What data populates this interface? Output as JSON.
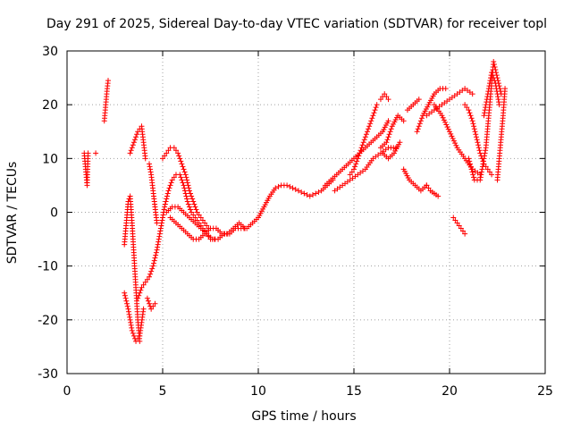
{
  "chart_data": {
    "type": "scatter",
    "title": "Day 291 of 2025, Sidereal Day-to-day VTEC variation (SDTVAR) for receiver topl",
    "xlabel": "GPS time / hours",
    "ylabel": "SDTVAR / TECUs",
    "xlim": [
      0,
      25
    ],
    "ylim": [
      -30,
      30
    ],
    "xticks": [
      "0",
      "5",
      "10",
      "15",
      "20",
      "25"
    ],
    "yticks": [
      "-30",
      "-20",
      "-10",
      "0",
      "10",
      "20",
      "30"
    ],
    "grid": true,
    "marker": "+",
    "color": "#ff0000",
    "series": [
      {
        "name": "s1",
        "x": [
          0.9,
          0.95,
          1.0,
          1.05,
          1.1
        ],
        "y": [
          11,
          9,
          7,
          5,
          11
        ]
      },
      {
        "name": "s2",
        "x": [
          1.5
        ],
        "y": [
          11
        ]
      },
      {
        "name": "s3",
        "x": [
          1.95,
          2.0,
          2.05,
          2.1,
          2.15
        ],
        "y": [
          17,
          19,
          21,
          23,
          24.5
        ]
      },
      {
        "name": "s4",
        "x": [
          3.0,
          3.1,
          3.2,
          3.3,
          3.4,
          3.5,
          3.6,
          3.7,
          3.8
        ],
        "y": [
          -6,
          -2,
          2,
          3,
          -2,
          -8,
          -14,
          -20,
          -24
        ]
      },
      {
        "name": "s5",
        "x": [
          3.0,
          3.2,
          3.4,
          3.6,
          3.8,
          4.0
        ],
        "y": [
          -15,
          -18,
          -22,
          -24,
          -23,
          -18
        ]
      },
      {
        "name": "s6",
        "x": [
          3.3,
          3.5,
          3.7,
          3.9,
          4.1
        ],
        "y": [
          11,
          13,
          15,
          16,
          10
        ]
      },
      {
        "name": "s7",
        "x": [
          3.7,
          3.9,
          4.1,
          4.3,
          4.5,
          4.7,
          4.9,
          5.1,
          5.3,
          5.5,
          5.7,
          5.9,
          6.1,
          6.3,
          6.5,
          6.7,
          6.9,
          7.1,
          7.3,
          7.5,
          7.7
        ],
        "y": [
          -16,
          -14,
          -13,
          -12,
          -10,
          -7,
          -3,
          1,
          4,
          6,
          7,
          7,
          5,
          2,
          0,
          -1,
          -2,
          -3,
          -4,
          -5,
          -5
        ]
      },
      {
        "name": "s8",
        "x": [
          4.2,
          4.4,
          4.6
        ],
        "y": [
          -16,
          -18,
          -17
        ]
      },
      {
        "name": "s9",
        "x": [
          4.3,
          4.4,
          4.5,
          4.6,
          4.7
        ],
        "y": [
          9,
          7,
          4,
          1,
          -2
        ]
      },
      {
        "name": "s10",
        "x": [
          5.0,
          5.2,
          5.4,
          5.6,
          5.8,
          6.0,
          6.2,
          6.4,
          6.6,
          6.8,
          7.0,
          7.2,
          7.4
        ],
        "y": [
          10,
          11,
          12,
          12,
          11,
          9,
          7,
          4,
          2,
          0,
          -1,
          -2,
          -3
        ]
      },
      {
        "name": "s11",
        "x": [
          5.2,
          5.5,
          5.8,
          6.1,
          6.4,
          6.7,
          7.0,
          7.3,
          7.6,
          7.9,
          8.2,
          8.5,
          8.8,
          9.1,
          9.4,
          9.7,
          10.0,
          10.3,
          10.6,
          10.9,
          11.2,
          11.5,
          11.8,
          12.1,
          12.4,
          12.7,
          13.0,
          13.3,
          13.6,
          13.9
        ],
        "y": [
          0,
          1,
          1,
          0,
          -1,
          -2,
          -3,
          -4,
          -5,
          -5,
          -4,
          -4,
          -3,
          -3,
          -3,
          -2,
          -1,
          1,
          3,
          4.5,
          5,
          5,
          4.5,
          4,
          3.5,
          3,
          3.5,
          4,
          5,
          6
        ]
      },
      {
        "name": "s12",
        "x": [
          5.4,
          5.7,
          6.0,
          6.3,
          6.6,
          6.9,
          7.2,
          7.5,
          7.8,
          8.1,
          8.4,
          8.7,
          9.0,
          9.3
        ],
        "y": [
          -1,
          -2,
          -3,
          -4,
          -5,
          -5,
          -4,
          -3,
          -3,
          -4,
          -4,
          -3,
          -2,
          -3
        ]
      },
      {
        "name": "s13",
        "x": [
          13.5,
          13.8,
          14.1,
          14.4,
          14.7,
          15.0,
          15.3,
          15.6,
          15.9,
          16.2,
          16.5,
          16.8
        ],
        "y": [
          5,
          6,
          7,
          8,
          9,
          10,
          11,
          12,
          13,
          14,
          15,
          17
        ]
      },
      {
        "name": "s14",
        "x": [
          14.0,
          14.4,
          14.8,
          15.2,
          15.6,
          16.0,
          16.4,
          16.8,
          17.2
        ],
        "y": [
          4,
          5,
          6,
          7,
          8,
          10,
          11,
          12,
          12
        ]
      },
      {
        "name": "s15",
        "x": [
          14.8,
          15.0,
          15.2,
          15.4,
          15.6,
          15.8,
          16.0,
          16.2
        ],
        "y": [
          7,
          8,
          10,
          12,
          14,
          16,
          18,
          20
        ]
      },
      {
        "name": "s16",
        "x": [
          16.4,
          16.6,
          16.8
        ],
        "y": [
          21,
          22,
          21
        ]
      },
      {
        "name": "s17",
        "x": [
          16.4,
          16.7,
          17.0,
          17.3,
          17.6
        ],
        "y": [
          12,
          13,
          16,
          18,
          17
        ]
      },
      {
        "name": "s18",
        "x": [
          16.5,
          16.8,
          17.1,
          17.4
        ],
        "y": [
          11,
          10,
          11,
          13
        ]
      },
      {
        "name": "s19",
        "x": [
          17.8,
          18.1,
          18.4
        ],
        "y": [
          19,
          20,
          21
        ]
      },
      {
        "name": "s20",
        "x": [
          17.6,
          17.9,
          18.2,
          18.5,
          18.8
        ],
        "y": [
          8,
          6,
          5,
          4,
          5
        ]
      },
      {
        "name": "s21",
        "x": [
          18.8,
          19.0,
          19.2,
          19.4
        ],
        "y": [
          5,
          4,
          3.5,
          3
        ]
      },
      {
        "name": "s22",
        "x": [
          18.3,
          18.6,
          18.9,
          19.2,
          19.5,
          19.8
        ],
        "y": [
          15,
          18,
          20,
          22,
          23,
          23
        ]
      },
      {
        "name": "s23",
        "x": [
          18.8,
          19.2,
          19.6,
          20.0,
          20.4,
          20.8,
          21.2
        ],
        "y": [
          18,
          19,
          20,
          21,
          22,
          23,
          22
        ]
      },
      {
        "name": "s24",
        "x": [
          19.2,
          19.6,
          20.0,
          20.4,
          20.8,
          21.2,
          21.6
        ],
        "y": [
          20,
          18,
          15,
          12,
          10,
          8,
          7
        ]
      },
      {
        "name": "s25",
        "x": [
          20.2,
          20.4,
          20.6,
          20.8
        ],
        "y": [
          -1,
          -2,
          -3,
          -4
        ]
      },
      {
        "name": "s26",
        "x": [
          20.8,
          21.0,
          21.2,
          21.4,
          21.6,
          21.8,
          22.0,
          22.2
        ],
        "y": [
          20,
          19,
          17,
          14,
          11,
          9,
          8,
          7
        ]
      },
      {
        "name": "s27",
        "x": [
          21.0,
          21.3,
          21.6,
          21.9,
          22.1,
          22.3,
          22.5,
          22.7
        ],
        "y": [
          10,
          6,
          6,
          12,
          20,
          28,
          25,
          22
        ]
      },
      {
        "name": "s28",
        "x": [
          21.8,
          22.0,
          22.2,
          22.4,
          22.6
        ],
        "y": [
          18,
          22,
          26,
          24,
          20
        ]
      },
      {
        "name": "s29",
        "x": [
          22.5,
          22.6,
          22.7,
          22.8,
          22.9
        ],
        "y": [
          6,
          10,
          14,
          18,
          23
        ]
      }
    ]
  }
}
